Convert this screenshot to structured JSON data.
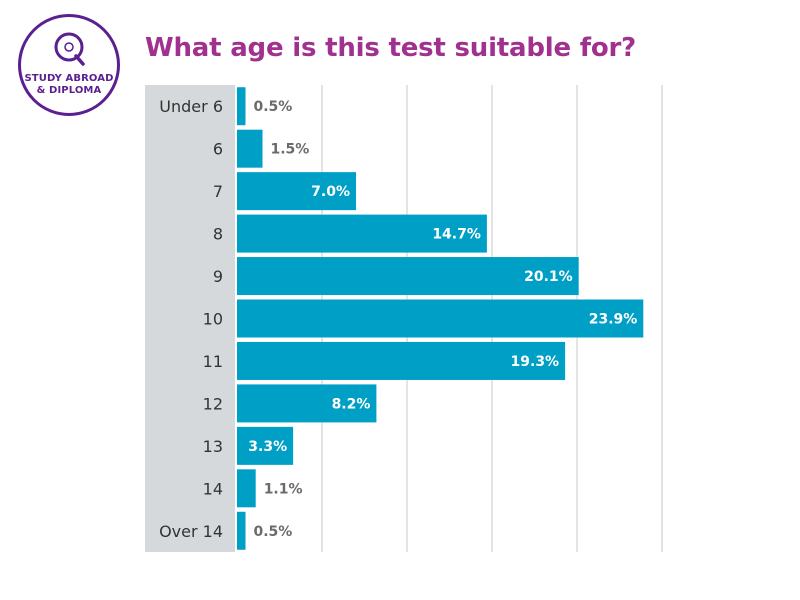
{
  "logo": {
    "letter": "Q",
    "line1": "STUDY ABROAD",
    "line2": "& DIPLOMA",
    "color": "#5b1f8f"
  },
  "chart_data": {
    "type": "bar",
    "orientation": "horizontal",
    "title": "What age is this test suitable for?",
    "categories": [
      "Under 6",
      "6",
      "7",
      "8",
      "9",
      "10",
      "11",
      "12",
      "13",
      "14",
      "Over 14"
    ],
    "values": [
      0.5,
      1.5,
      7.0,
      14.7,
      20.1,
      23.9,
      19.3,
      8.2,
      3.3,
      1.1,
      0.5
    ],
    "labels": [
      "0.5%",
      "1.5%",
      "7.0%",
      "14.7%",
      "20.1%",
      "23.9%",
      "19.3%",
      "8.2%",
      "3.3%",
      "1.1%",
      "0.5%"
    ],
    "xlim": [
      0,
      25
    ],
    "grid": true,
    "colors": {
      "bar": "#00a0c6",
      "label_inside": "#ffffff",
      "label_outside": "#6b6b6b",
      "category_panel": "#d6d9dc",
      "category_text": "#333333",
      "grid": "#c8c8c8"
    }
  }
}
